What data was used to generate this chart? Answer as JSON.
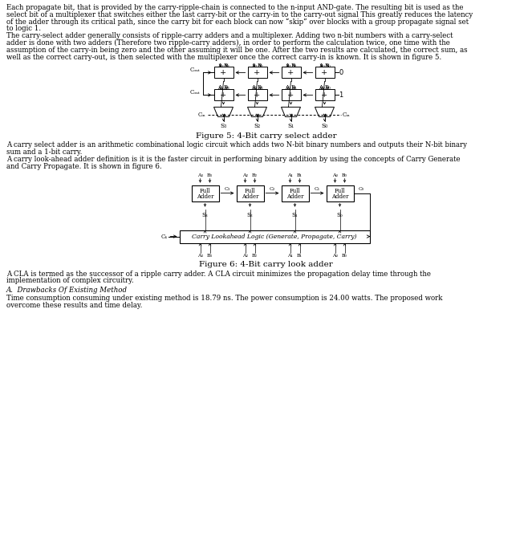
{
  "figsize": [
    6.63,
    6.64
  ],
  "dpi": 100,
  "bg_color": "#ffffff",
  "text_color": "#000000",
  "p1_lines": [
    "Each propagate bit, that is provided by the carry-ripple-chain is connected to the n-input AND-gate. The resulting bit is used as the",
    "select bit of a multiplexer that switches either the last carry-bit or the carry-in to the carry-out signal This greatly reduces the latency",
    "of the adder through its critical path, since the carry bit for each block can now “skip” over blocks with a group propagate signal set",
    "to logic 1."
  ],
  "p2_lines": [
    "The carry-select adder generally consists of ripple-carry adders and a multiplexer. Adding two n-bit numbers with a carry-select",
    "adder is done with two adders (Therefore two ripple-carry adders), in order to perform the calculation twice, one time with the",
    "assumption of the carry-in being zero and the other assuming it will be one. After the two results are calculated, the correct sum, as",
    "well as the correct carry-out, is then selected with the multiplexer once the correct carry-in is known. It is shown in figure 5."
  ],
  "fig5_caption": "Figure 5: 4-Bit carry select adder",
  "p3_lines": [
    "A carry select adder is an arithmetic combinational logic circuit which adds two N-bit binary numbers and outputs their N-bit binary",
    "sum and a 1-bit carry."
  ],
  "p4_lines": [
    "A carry look-ahead adder definition is it is the faster circuit in performing binary addition by using the concepts of Carry Generate",
    "and Carry Propagate. It is shown in figure 6."
  ],
  "fig6_caption": "Figure 6: 4-Bit carry look adder",
  "p5_lines": [
    "A CLA is termed as the successor of a ripple carry adder. A CLA circuit minimizes the propagation delay time through the",
    "implementation of complex circuitry."
  ],
  "section_title": "A.  Drawbacks Of Existing Method",
  "p6_lines": [
    "Time consumption consuming under existing method is 18.79 ns. The power consumption is 24.00 watts. The proposed work",
    "overcome these results and time delay."
  ]
}
